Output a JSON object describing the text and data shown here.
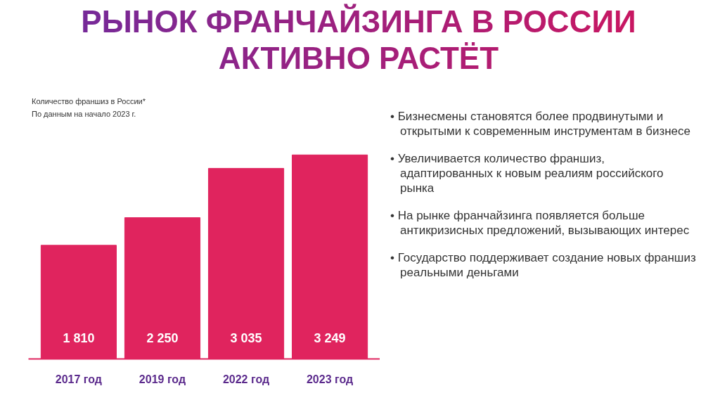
{
  "chart_data": {
    "type": "bar",
    "title": "РЫНОК ФРАНЧАЙЗИНГА В РОССИИ АКТИВНО РАСТЁТ",
    "subtitle": "Количество франшиз в России*",
    "categories": [
      "2017 год",
      "2019 год",
      "2022 год",
      "2023 год"
    ],
    "values": [
      1810,
      2250,
      3035,
      3249
    ],
    "value_labels": [
      "1 810",
      "2 250",
      "3 035",
      "3 249"
    ],
    "color": "#e0245e",
    "annotations": [
      "По данным на начало 2023 г.",
      "• Бизнесмены становятся более продвинутыми и открытыми к современным инструментам в бизнесе",
      "• Увеличивается количество франшиз, адаптированных к новым реалиям российского рынка",
      "• На рынке франчайзинга появляется больше антикризисных предложений, вызывающих интерес",
      "• Государство поддерживает создание новых франшиз реальными деньгами"
    ],
    "grid": false,
    "tick_labels": "x"
  }
}
